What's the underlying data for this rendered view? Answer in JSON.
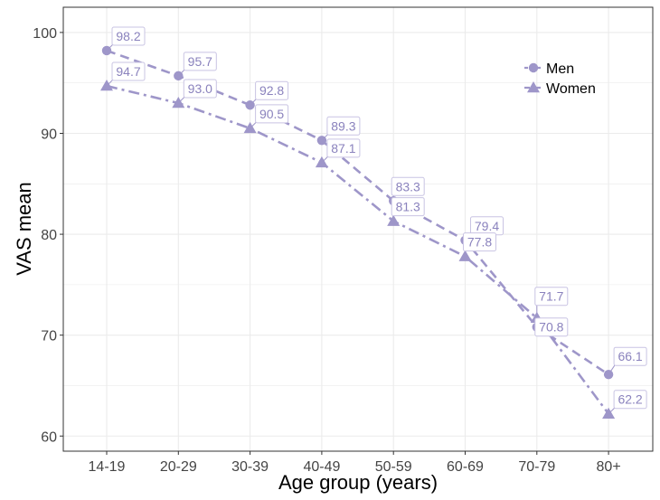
{
  "chart_data": {
    "type": "line",
    "title": "",
    "xlabel": "Age group (years)",
    "ylabel": "VAS mean",
    "categories": [
      "14-19",
      "20-29",
      "30-39",
      "40-49",
      "50-59",
      "60-69",
      "70-79",
      "80+"
    ],
    "ylim": [
      58.5,
      102.5
    ],
    "yticks": [
      60,
      70,
      80,
      90,
      100
    ],
    "grid": true,
    "legend_position": "top-right",
    "series": [
      {
        "name": "Men",
        "values": [
          98.2,
          95.7,
          92.8,
          89.3,
          83.3,
          79.4,
          70.8,
          66.1
        ],
        "marker": "circle",
        "dash": "dashed"
      },
      {
        "name": "Women",
        "values": [
          94.7,
          93.0,
          90.5,
          87.1,
          81.3,
          77.8,
          71.7,
          62.2
        ],
        "marker": "triangle",
        "dash": "dotdash"
      }
    ],
    "colors": {
      "series": "#9e96c9",
      "label_text": "#8a82bd",
      "grid": "#ebebeb",
      "panel_border": "#333333"
    }
  }
}
